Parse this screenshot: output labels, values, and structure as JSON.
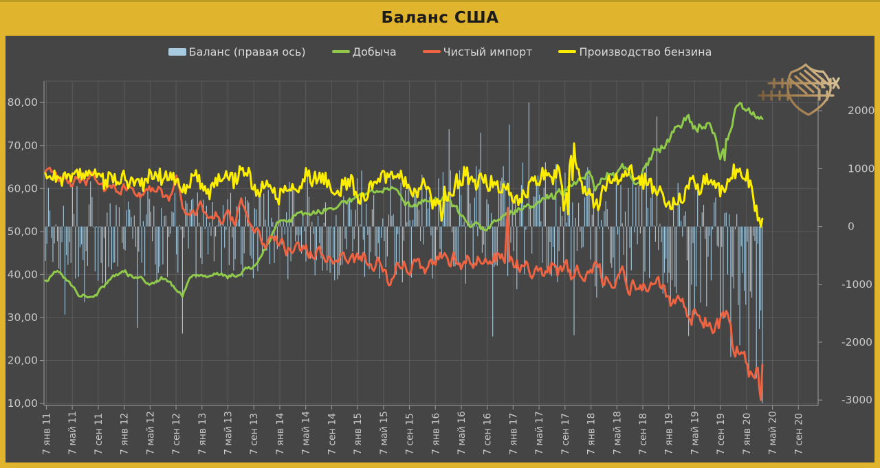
{
  "chart_data": {
    "type": "combo",
    "title": "Баланс США",
    "background": "#454545",
    "frame_color": "#e0b42c",
    "grid": true,
    "legend_position": "top",
    "legend": [
      {
        "label": "Баланс (правая ось)",
        "swatch": "bar",
        "color": "#a7cce2",
        "axis": "right"
      },
      {
        "label": "Добыча",
        "swatch": "line",
        "color": "#8fca4a",
        "axis": "left"
      },
      {
        "label": "Чистый импорт",
        "swatch": "line",
        "color": "#ee6342",
        "axis": "left"
      },
      {
        "label": "Производство бензина",
        "swatch": "line",
        "color": "#fdee00",
        "axis": "left"
      }
    ],
    "x_axis": {
      "tick_labels": [
        "7 янв 11",
        "7 май 11",
        "7 сен 11",
        "7 янв 12",
        "7 май 12",
        "7 сен 12",
        "7 янв 13",
        "7 май 13",
        "7 сен 13",
        "7 янв 14",
        "7 май 14",
        "7 сен 14",
        "7 янв 15",
        "7 май 15",
        "7 сен 15",
        "7 янв 16",
        "7 май 16",
        "7 сен 16",
        "7 янв 17",
        "7 май 17",
        "7 сен 17",
        "7 янв 18",
        "7 май 18",
        "7 сен 18",
        "7 янв 19",
        "7 май 19",
        "7 сен 19",
        "7 янв 20",
        "7 май 20",
        "7 сен 20"
      ]
    },
    "left_axis": {
      "ticks": [
        "10,00",
        "20,00",
        "30,00",
        "40,00",
        "50,00",
        "60,00",
        "70,00",
        "80,00"
      ],
      "min": 10,
      "max": 80
    },
    "right_axis": {
      "ticks": [
        "-3000",
        "-2000",
        "-1000",
        "0",
        "1000",
        "2000"
      ],
      "min": -3000,
      "max": 2000
    },
    "sampling": "weekly points Jan 2011 – Mar 2020; arrays below are monthly anchor values (first = Dec 2010)",
    "series": {
      "balance": {
        "name": "Баланс (правая ось)",
        "axis": "right",
        "color": "#a7cce2",
        "monthly_bias": [
          -100,
          -150,
          -100,
          -200,
          -150,
          -100,
          -200,
          -150,
          -100,
          -200,
          -250,
          -150,
          -200,
          -150,
          -200,
          -100,
          -150,
          -250,
          -150,
          -100,
          -200,
          -150,
          -300,
          -200,
          -150,
          -100,
          -150,
          -50,
          -100,
          -150,
          -50,
          -100,
          -150,
          -100,
          -50,
          -100,
          -150,
          -50,
          0,
          -100,
          -50,
          0,
          -100,
          -50,
          0,
          -50,
          -100,
          0,
          -50,
          50,
          100,
          0,
          50,
          100,
          150,
          50,
          0,
          100,
          50,
          0,
          50,
          0,
          50,
          100,
          0,
          50,
          0,
          100,
          50,
          0,
          100,
          50,
          0,
          0,
          -50,
          100,
          0,
          -50,
          0,
          50,
          -50,
          0,
          -100,
          -50,
          0,
          -50,
          0,
          -100,
          -50,
          -100,
          -50,
          -150,
          -100,
          -50,
          -150,
          -100,
          -200,
          -300,
          -350,
          -400,
          -400,
          -450,
          -500,
          -500,
          -550,
          -600,
          -650,
          -700,
          -800,
          -900,
          -1300,
          -1400
        ],
        "monthly_amp": [
          800,
          850,
          900,
          950,
          900,
          850,
          900,
          950,
          900,
          850,
          950,
          900,
          850,
          900,
          950,
          1000,
          950,
          900,
          1000,
          950,
          900,
          1000,
          1050,
          950,
          900,
          800,
          850,
          800,
          750,
          850,
          800,
          750,
          800,
          850,
          800,
          750,
          800,
          850,
          900,
          850,
          900,
          950,
          900,
          850,
          900,
          950,
          900,
          850,
          900,
          950,
          1000,
          950,
          1000,
          1050,
          1000,
          950,
          1050,
          1000,
          950,
          1000,
          950,
          1000,
          1050,
          1100,
          1050,
          1000,
          1100,
          1050,
          1100,
          1150,
          1100,
          1050,
          1000,
          1100,
          1150,
          1200,
          1150,
          1100,
          1150,
          1200,
          1150,
          1100,
          1200,
          1150,
          1100,
          1050,
          1100,
          1050,
          1100,
          1150,
          1100,
          1050,
          1100,
          1150,
          1200,
          1150,
          1100,
          1150,
          1150,
          1100,
          1150,
          1200,
          1150,
          1100,
          1150,
          1100,
          1050,
          1100,
          1150,
          1100,
          1200,
          1200
        ],
        "outliers": [
          [
            13,
            -1520
          ],
          [
            61,
            -1750
          ],
          [
            91,
            -1850
          ],
          [
            268,
            1680
          ],
          [
            289,
            1620
          ],
          [
            297,
            -1900
          ],
          [
            308,
            1760
          ],
          [
            321,
            2140
          ],
          [
            351,
            -1880
          ],
          [
            406,
            1900
          ],
          [
            448,
            -1580
          ],
          [
            455,
            -2250
          ],
          [
            461,
            -2050
          ],
          [
            467,
            -2480
          ],
          [
            472,
            -2620
          ],
          [
            475,
            -1450
          ],
          [
            476,
            -3050
          ]
        ]
      },
      "production": {
        "name": "Добыча",
        "axis": "left",
        "color": "#8fca4a",
        "monthly": [
          37.0,
          38.5,
          40.5,
          40.0,
          38.5,
          37.0,
          35.5,
          34.8,
          35.2,
          36.0,
          37.5,
          39.0,
          40.2,
          40.5,
          39.8,
          39.2,
          38.6,
          38.2,
          38.6,
          39.2,
          38.0,
          36.0,
          35.0,
          38.8,
          39.8,
          40.0,
          39.4,
          39.8,
          40.2,
          39.6,
          40.0,
          40.6,
          41.2,
          42.2,
          43.8,
          46.5,
          49.5,
          52.0,
          53.0,
          53.2,
          53.8,
          54.2,
          54.0,
          54.6,
          55.2,
          55.8,
          56.2,
          57.0,
          57.4,
          57.8,
          58.2,
          59.0,
          59.6,
          60.2,
          60.4,
          59.2,
          57.2,
          55.8,
          56.4,
          57.4,
          57.8,
          57.6,
          57.8,
          57.2,
          55.6,
          53.8,
          52.4,
          51.4,
          50.8,
          50.6,
          51.8,
          53.2,
          54.2,
          54.6,
          55.0,
          55.4,
          55.8,
          56.4,
          57.2,
          58.0,
          58.8,
          59.6,
          60.6,
          62.0,
          63.5,
          62.5,
          60.0,
          63.0,
          64.0,
          63.0,
          65.0,
          63.5,
          61.5,
          63.5,
          66.5,
          69.0,
          69.8,
          71.0,
          73.5,
          75.5,
          76.5,
          74.0,
          75.0,
          74.5,
          72.5,
          67.5,
          71.5,
          77.0,
          80.6,
          78.5,
          76.8,
          76.2
        ],
        "outliers": [
          [
            451,
            66.6
          ],
          [
            476,
            76.2
          ]
        ]
      },
      "net_imports": {
        "name": "Чистый импорт",
        "axis": "left",
        "color": "#ee6342",
        "monthly": [
          62.0,
          63.5,
          64.5,
          62.0,
          63.0,
          61.0,
          62.5,
          60.5,
          63.0,
          61.0,
          59.5,
          61.5,
          59.0,
          60.0,
          61.5,
          59.5,
          58.0,
          59.5,
          61.0,
          58.5,
          56.5,
          64.5,
          56.0,
          52.5,
          54.5,
          55.5,
          53.0,
          54.5,
          52.0,
          53.5,
          51.5,
          58.5,
          53.0,
          50.5,
          49.0,
          47.5,
          48.5,
          47.5,
          46.0,
          47.0,
          45.5,
          46.5,
          44.5,
          45.5,
          44.0,
          45.0,
          43.5,
          44.5,
          43.0,
          43.5,
          44.5,
          42.5,
          43.5,
          40.0,
          37.5,
          42.0,
          43.5,
          41.0,
          42.5,
          40.5,
          42.0,
          44.0,
          45.0,
          43.5,
          44.5,
          43.0,
          44.5,
          42.5,
          44.0,
          42.0,
          43.5,
          44.5,
          43.0,
          43.5,
          42.0,
          43.0,
          41.0,
          42.5,
          40.5,
          42.0,
          40.0,
          41.5,
          39.5,
          40.5,
          38.5,
          39.5,
          41.0,
          39.0,
          40.0,
          38.0,
          39.5,
          37.5,
          38.5,
          36.5,
          38.0,
          36.0,
          37.0,
          34.5,
          31.5,
          32.5,
          29.5,
          31.0,
          28.0,
          29.0,
          27.2,
          28.5,
          29.2,
          23.0,
          21.5,
          19.0,
          15.0,
          19.0
        ],
        "outliers": [
          [
            306,
            49.0
          ],
          [
            307,
            55.5
          ],
          [
            474,
            13.5
          ],
          [
            475,
            10.8
          ],
          [
            476,
            19.0
          ]
        ]
      },
      "gasoline_production": {
        "name": "Производство бензина",
        "axis": "left",
        "color": "#fdee00",
        "monthly": [
          60.0,
          61.5,
          63.5,
          61.0,
          63.5,
          62.0,
          64.0,
          62.5,
          64.5,
          62.0,
          60.5,
          62.5,
          61.0,
          62.0,
          60.0,
          62.5,
          61.0,
          63.0,
          64.5,
          62.0,
          64.0,
          61.5,
          59.5,
          62.0,
          63.5,
          60.5,
          58.5,
          61.0,
          62.5,
          64.0,
          62.0,
          64.5,
          63.0,
          61.0,
          59.0,
          61.5,
          60.0,
          57.5,
          60.5,
          59.0,
          61.5,
          63.0,
          61.0,
          63.5,
          62.0,
          60.0,
          58.5,
          61.0,
          62.5,
          58.5,
          58.0,
          60.5,
          62.0,
          63.5,
          61.5,
          64.0,
          62.5,
          60.5,
          59.0,
          61.0,
          59.5,
          55.5,
          59.5,
          58.0,
          60.5,
          62.0,
          63.5,
          61.5,
          63.0,
          60.0,
          61.5,
          59.5,
          61.0,
          57.5,
          57.0,
          59.5,
          61.0,
          62.5,
          64.0,
          62.0,
          63.5,
          54.5,
          70.5,
          63.0,
          60.5,
          58.0,
          56.5,
          60.0,
          61.5,
          63.0,
          61.0,
          63.5,
          62.0,
          60.5,
          62.5,
          60.0,
          58.5,
          56.5,
          56.0,
          58.5,
          60.0,
          62.0,
          60.5,
          63.0,
          61.5,
          59.5,
          61.0,
          63.5,
          64.2,
          63.5,
          58.0,
          53.0
        ],
        "outliers": [
          [
            263,
            52.5
          ],
          [
            264,
            54.5
          ],
          [
            347,
            54.0
          ],
          [
            350,
            62.0
          ],
          [
            351,
            70.5
          ],
          [
            352,
            66.0
          ],
          [
            416,
            55.2
          ],
          [
            476,
            53.0
          ]
        ]
      }
    }
  }
}
